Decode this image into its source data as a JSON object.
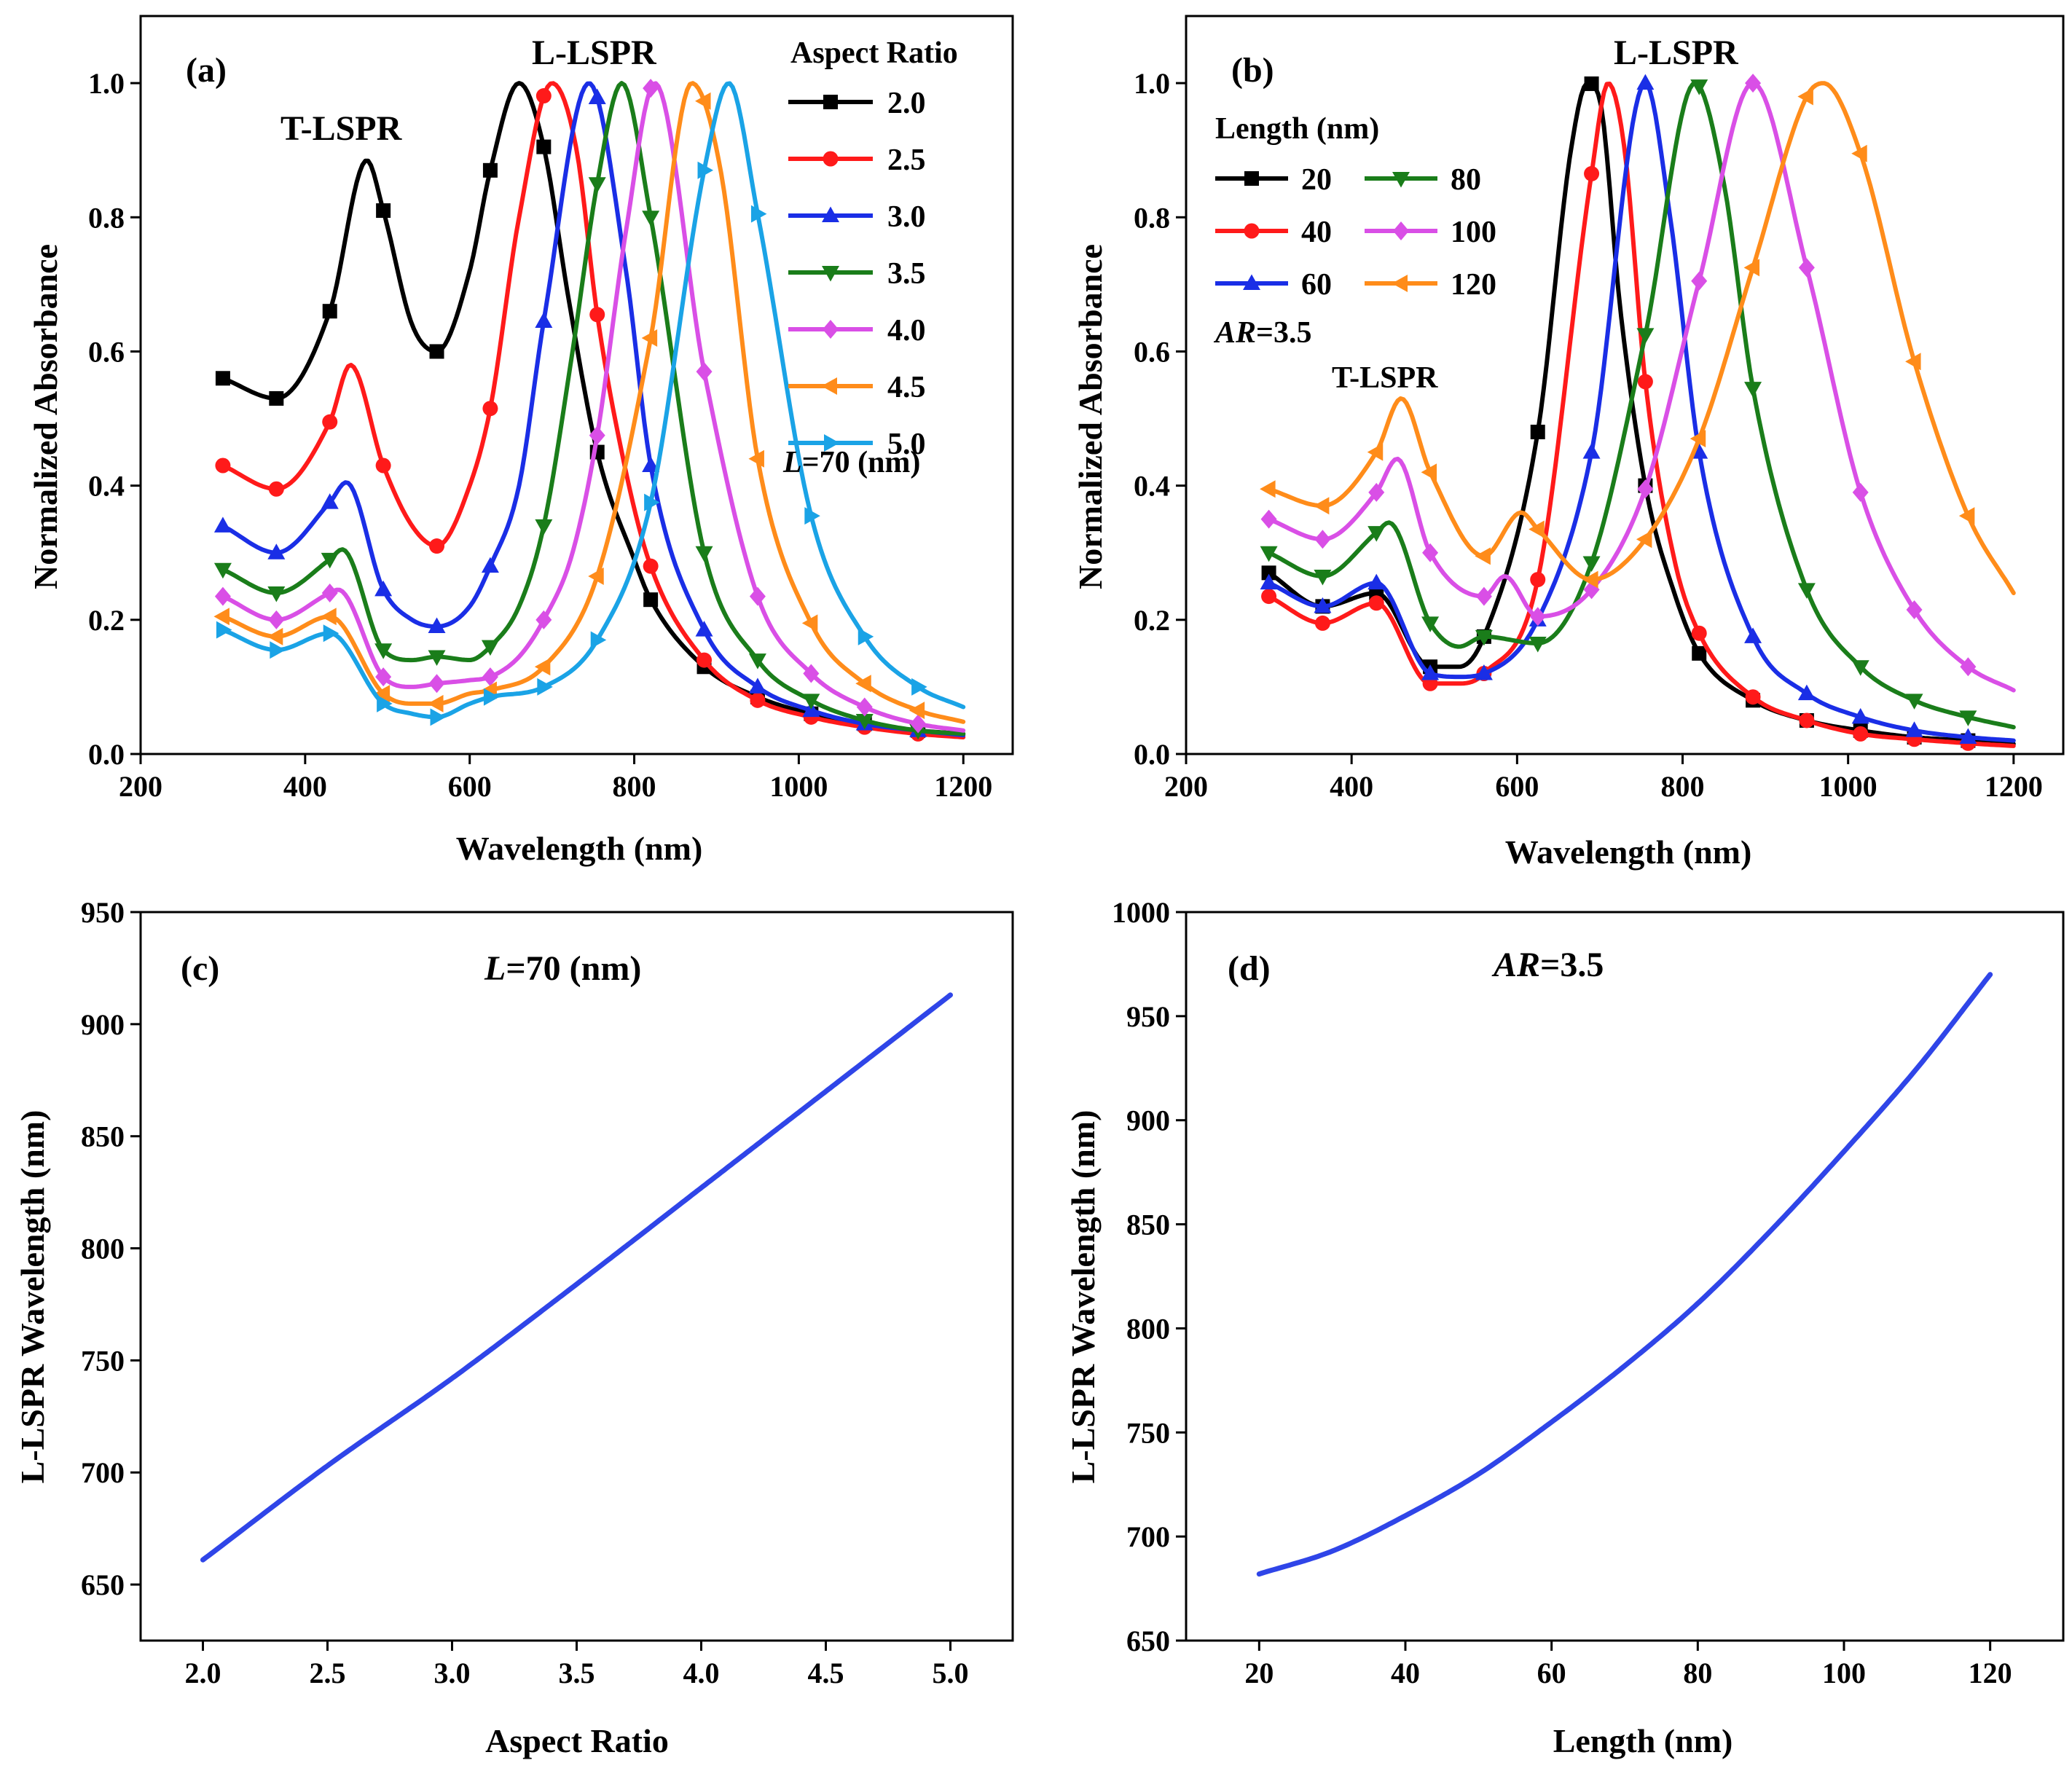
{
  "colors": {
    "ar2.0": "#000000",
    "ar2.5": "#ff1a1a",
    "ar3.0": "#1a2ee6",
    "ar3.5": "#1a7d1a",
    "ar4.0": "#d94fe6",
    "ar4.5": "#ff8c1a",
    "ar5.0": "#1aa3e6",
    "len20": "#000000",
    "len40": "#ff1a1a",
    "len60": "#1a2ee6",
    "len80": "#1a7d1a",
    "len100": "#d94fe6",
    "len120": "#ff8c1a",
    "line": "#2f45e8"
  },
  "chart_data": [
    {
      "id": "a",
      "type": "line",
      "panel_label": "(a)",
      "xlabel": "Wavelength (nm)",
      "ylabel": "Normalized Absorbance",
      "xlim": [
        200,
        1260
      ],
      "ylim": [
        0,
        1.1
      ],
      "xticks": [
        200,
        400,
        600,
        800,
        1000,
        1200
      ],
      "yticks": [
        0.0,
        0.2,
        0.4,
        0.6,
        0.8,
        1.0
      ],
      "ytick_labels": [
        "0.0",
        "0.2",
        "0.4",
        "0.6",
        "0.8",
        "1.0"
      ],
      "legend_title": "Aspect Ratio",
      "annotations": [
        "T-LSPR",
        "L-LSPR"
      ],
      "note_italic": "L",
      "note_rest": "=70 (nm)",
      "marker_x": [
        300,
        365,
        430,
        495,
        560,
        625,
        690,
        755,
        820,
        885,
        950,
        1015,
        1080,
        1145
      ],
      "series": [
        {
          "name": "2.0",
          "color_key": "ar2.0",
          "marker": "square",
          "x": [
            300,
            365,
            430,
            475,
            495,
            530,
            560,
            600,
            625,
            660,
            690,
            720,
            755,
            800,
            820,
            885,
            950,
            1015,
            1080,
            1145,
            1200
          ],
          "y": [
            0.56,
            0.53,
            0.66,
            0.885,
            0.81,
            0.64,
            0.6,
            0.72,
            0.87,
            1.0,
            0.905,
            0.68,
            0.45,
            0.29,
            0.23,
            0.13,
            0.085,
            0.06,
            0.045,
            0.035,
            0.03
          ]
        },
        {
          "name": "2.5",
          "color_key": "ar2.5",
          "marker": "circle",
          "x": [
            300,
            365,
            430,
            455,
            495,
            530,
            560,
            600,
            625,
            660,
            700,
            730,
            755,
            790,
            820,
            885,
            950,
            1015,
            1080,
            1145,
            1200
          ],
          "y": [
            0.43,
            0.395,
            0.495,
            0.58,
            0.43,
            0.34,
            0.31,
            0.4,
            0.515,
            0.8,
            1.0,
            0.9,
            0.655,
            0.42,
            0.28,
            0.14,
            0.08,
            0.055,
            0.04,
            0.03,
            0.025
          ]
        },
        {
          "name": "3.0",
          "color_key": "ar3.0",
          "marker": "triangle-up",
          "x": [
            300,
            365,
            430,
            450,
            495,
            530,
            560,
            600,
            625,
            660,
            690,
            745,
            790,
            820,
            885,
            950,
            1015,
            1080,
            1145,
            1200
          ],
          "y": [
            0.34,
            0.3,
            0.375,
            0.405,
            0.245,
            0.2,
            0.19,
            0.22,
            0.28,
            0.4,
            0.645,
            1.0,
            0.72,
            0.43,
            0.185,
            0.1,
            0.065,
            0.045,
            0.035,
            0.028
          ]
        },
        {
          "name": "3.5",
          "color_key": "ar3.5",
          "marker": "triangle-down",
          "x": [
            300,
            365,
            430,
            445,
            495,
            530,
            560,
            600,
            625,
            660,
            690,
            725,
            755,
            785,
            820,
            885,
            950,
            1015,
            1080,
            1145,
            1200
          ],
          "y": [
            0.275,
            0.24,
            0.29,
            0.305,
            0.155,
            0.14,
            0.145,
            0.14,
            0.16,
            0.22,
            0.34,
            0.6,
            0.85,
            1.0,
            0.8,
            0.3,
            0.14,
            0.08,
            0.05,
            0.035,
            0.03
          ]
        },
        {
          "name": "4.0",
          "color_key": "ar4.0",
          "marker": "diamond",
          "x": [
            300,
            365,
            430,
            440,
            495,
            530,
            560,
            600,
            625,
            660,
            690,
            725,
            755,
            790,
            825,
            885,
            950,
            1015,
            1080,
            1145,
            1200
          ],
          "y": [
            0.235,
            0.2,
            0.24,
            0.245,
            0.115,
            0.1,
            0.105,
            0.11,
            0.115,
            0.145,
            0.2,
            0.3,
            0.475,
            0.78,
            1.0,
            0.57,
            0.235,
            0.12,
            0.07,
            0.045,
            0.035
          ]
        },
        {
          "name": "4.5",
          "color_key": "ar4.5",
          "marker": "triangle-left",
          "x": [
            300,
            365,
            430,
            495,
            530,
            560,
            600,
            625,
            690,
            755,
            820,
            870,
            905,
            950,
            1015,
            1080,
            1145,
            1200
          ],
          "y": [
            0.205,
            0.175,
            0.205,
            0.09,
            0.075,
            0.075,
            0.09,
            0.095,
            0.13,
            0.265,
            0.62,
            1.0,
            0.87,
            0.44,
            0.195,
            0.105,
            0.065,
            0.048
          ]
        },
        {
          "name": "5.0",
          "color_key": "ar5.0",
          "marker": "triangle-right",
          "x": [
            300,
            365,
            430,
            495,
            530,
            560,
            600,
            625,
            690,
            755,
            820,
            885,
            915,
            950,
            1015,
            1080,
            1145,
            1200
          ],
          "y": [
            0.185,
            0.155,
            0.18,
            0.075,
            0.06,
            0.055,
            0.075,
            0.085,
            0.1,
            0.17,
            0.375,
            0.87,
            1.0,
            0.805,
            0.355,
            0.175,
            0.1,
            0.07
          ]
        }
      ]
    },
    {
      "id": "b",
      "type": "line",
      "panel_label": "(b)",
      "xlabel": "Wavelength (nm)",
      "ylabel": "Normalized Absorbance",
      "xlim": [
        200,
        1260
      ],
      "ylim": [
        0,
        1.1
      ],
      "xticks": [
        200,
        400,
        600,
        800,
        1000,
        1200
      ],
      "yticks": [
        0.0,
        0.2,
        0.4,
        0.6,
        0.8,
        1.0
      ],
      "ytick_labels": [
        "0.0",
        "0.2",
        "0.4",
        "0.6",
        "0.8",
        "1.0"
      ],
      "legend_title": "Length (nm)",
      "annotations": [
        "L-LSPR",
        "T-LSPR"
      ],
      "note_italic": "AR",
      "note_rest": "=3.5",
      "marker_x": [
        300,
        365,
        430,
        495,
        560,
        625,
        690,
        755,
        820,
        885,
        950,
        1015,
        1080,
        1145
      ],
      "series": [
        {
          "name": "20",
          "color_key": "len20",
          "marker": "square",
          "x": [
            300,
            365,
            430,
            495,
            530,
            560,
            625,
            665,
            685,
            700,
            725,
            755,
            790,
            820,
            885,
            950,
            1015,
            1080,
            1145,
            1200
          ],
          "y": [
            0.27,
            0.22,
            0.24,
            0.13,
            0.13,
            0.175,
            0.48,
            0.9,
            1.0,
            0.975,
            0.66,
            0.4,
            0.24,
            0.15,
            0.08,
            0.05,
            0.035,
            0.025,
            0.02,
            0.015
          ]
        },
        {
          "name": "40",
          "color_key": "len40",
          "marker": "circle",
          "x": [
            300,
            365,
            430,
            495,
            530,
            560,
            625,
            690,
            710,
            730,
            755,
            790,
            820,
            885,
            950,
            1015,
            1080,
            1145,
            1200
          ],
          "y": [
            0.235,
            0.195,
            0.225,
            0.105,
            0.105,
            0.12,
            0.26,
            0.865,
            1.0,
            0.9,
            0.555,
            0.29,
            0.18,
            0.085,
            0.05,
            0.03,
            0.022,
            0.016,
            0.012
          ]
        },
        {
          "name": "60",
          "color_key": "len60",
          "marker": "triangle-up",
          "x": [
            300,
            365,
            430,
            495,
            530,
            560,
            625,
            690,
            755,
            785,
            820,
            885,
            950,
            1015,
            1080,
            1145,
            1200
          ],
          "y": [
            0.255,
            0.22,
            0.255,
            0.12,
            0.115,
            0.12,
            0.2,
            0.45,
            1.0,
            0.8,
            0.45,
            0.175,
            0.09,
            0.055,
            0.035,
            0.025,
            0.02
          ]
        },
        {
          "name": "80",
          "color_key": "len80",
          "marker": "triangle-down",
          "x": [
            300,
            365,
            430,
            445,
            495,
            530,
            560,
            625,
            690,
            755,
            815,
            850,
            885,
            950,
            1015,
            1080,
            1145,
            1200
          ],
          "y": [
            0.3,
            0.265,
            0.33,
            0.345,
            0.195,
            0.16,
            0.175,
            0.165,
            0.285,
            0.625,
            1.0,
            0.85,
            0.545,
            0.245,
            0.13,
            0.08,
            0.055,
            0.04
          ]
        },
        {
          "name": "100",
          "color_key": "len100",
          "marker": "diamond",
          "x": [
            300,
            365,
            430,
            455,
            495,
            560,
            585,
            625,
            690,
            755,
            820,
            885,
            950,
            1015,
            1080,
            1145,
            1200
          ],
          "y": [
            0.35,
            0.32,
            0.39,
            0.44,
            0.3,
            0.235,
            0.265,
            0.205,
            0.245,
            0.395,
            0.705,
            1.0,
            0.725,
            0.39,
            0.215,
            0.13,
            0.095
          ]
        },
        {
          "name": "120",
          "color_key": "len120",
          "marker": "triangle-left",
          "x": [
            300,
            365,
            430,
            460,
            495,
            560,
            605,
            625,
            690,
            755,
            820,
            885,
            950,
            970,
            1015,
            1080,
            1145,
            1200
          ],
          "y": [
            0.395,
            0.37,
            0.45,
            0.53,
            0.42,
            0.295,
            0.36,
            0.335,
            0.26,
            0.32,
            0.47,
            0.725,
            0.98,
            1.0,
            0.895,
            0.585,
            0.355,
            0.24
          ]
        }
      ]
    },
    {
      "id": "c",
      "type": "line",
      "panel_label": "(c)",
      "xlabel": "Aspect Ratio",
      "ylabel": "L-LSPR Wavelength (nm)",
      "xlim": [
        1.75,
        5.25
      ],
      "ylim": [
        625,
        950
      ],
      "xticks": [
        2.0,
        2.5,
        3.0,
        3.5,
        4.0,
        4.5,
        5.0
      ],
      "xtick_labels": [
        "2.0",
        "2.5",
        "3.0",
        "3.5",
        "4.0",
        "4.5",
        "5.0"
      ],
      "yticks": [
        650,
        700,
        750,
        800,
        850,
        900,
        950
      ],
      "ytick_labels": [
        "650",
        "700",
        "750",
        "800",
        "850",
        "900",
        "950"
      ],
      "note_italic": "L",
      "note_rest": "=70 (nm)",
      "series": [
        {
          "name": "L-LSPR",
          "color_key": "line",
          "x": [
            2.0,
            2.5,
            3.0,
            3.5,
            4.0,
            4.5,
            5.0
          ],
          "y": [
            661,
            703,
            742,
            784,
            827,
            870,
            913
          ]
        }
      ]
    },
    {
      "id": "d",
      "type": "line",
      "panel_label": "(d)",
      "xlabel": "Length (nm)",
      "ylabel": "L-LSPR Wavelength (nm)",
      "xlim": [
        10,
        130
      ],
      "ylim": [
        650,
        1000
      ],
      "xticks": [
        20,
        40,
        60,
        80,
        100,
        120
      ],
      "xtick_labels": [
        "20",
        "40",
        "60",
        "80",
        "100",
        "120"
      ],
      "yticks": [
        650,
        700,
        750,
        800,
        850,
        900,
        950,
        1000
      ],
      "ytick_labels": [
        "650",
        "700",
        "750",
        "800",
        "850",
        "900",
        "950",
        "1000"
      ],
      "note_italic": "AR",
      "note_rest": "=3.5",
      "series": [
        {
          "name": "L-LSPR",
          "color_key": "line",
          "x": [
            20,
            30,
            40,
            50,
            60,
            70,
            80,
            90,
            100,
            110,
            120
          ],
          "y": [
            682,
            693,
            710,
            730,
            755,
            782,
            812,
            847,
            885,
            925,
            970
          ]
        }
      ]
    }
  ]
}
